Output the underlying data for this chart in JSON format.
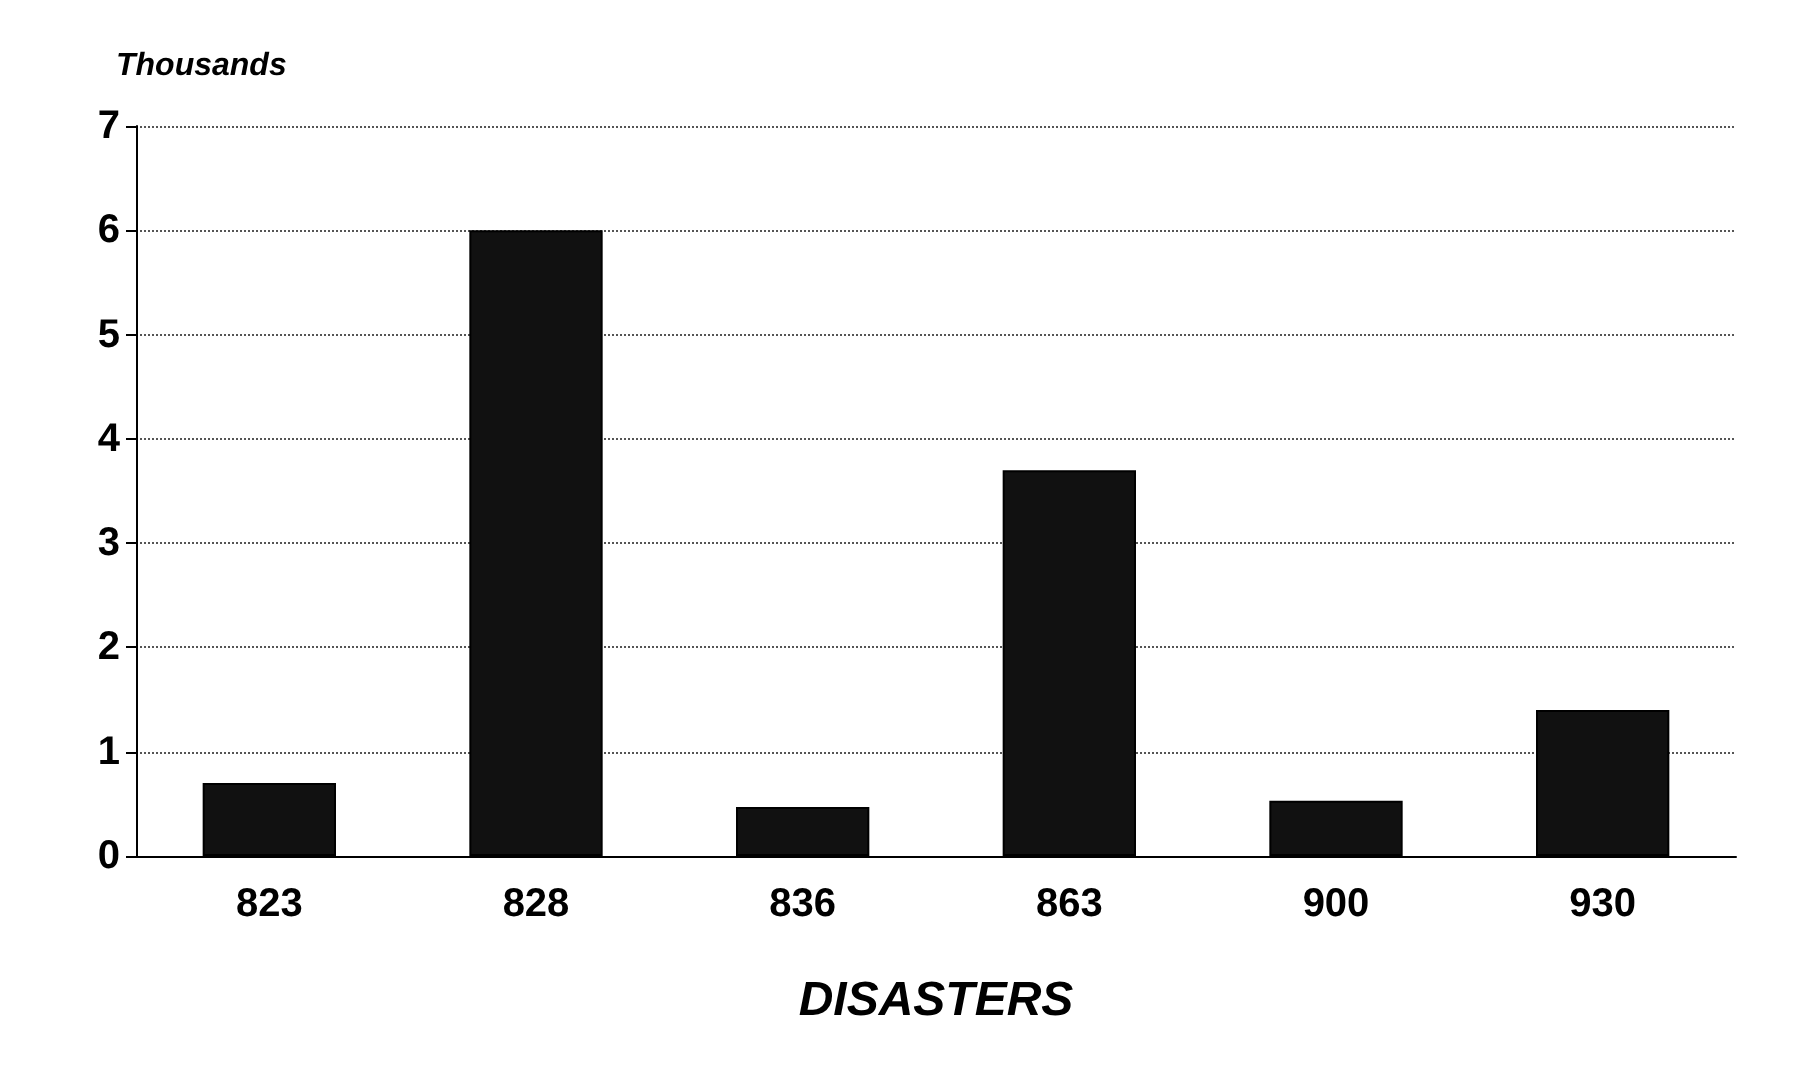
{
  "chart_data": {
    "type": "bar",
    "categories": [
      "823",
      "828",
      "836",
      "863",
      "900",
      "930"
    ],
    "values": [
      0.7,
      6.0,
      0.47,
      3.7,
      0.53,
      1.4
    ],
    "color": "#111111",
    "ylabel": "Thousands",
    "xlabel": "DISASTERS",
    "ylim": [
      0,
      7
    ],
    "yticks": [
      0,
      1,
      2,
      3,
      4,
      5,
      6,
      7
    ],
    "grid": "y"
  }
}
